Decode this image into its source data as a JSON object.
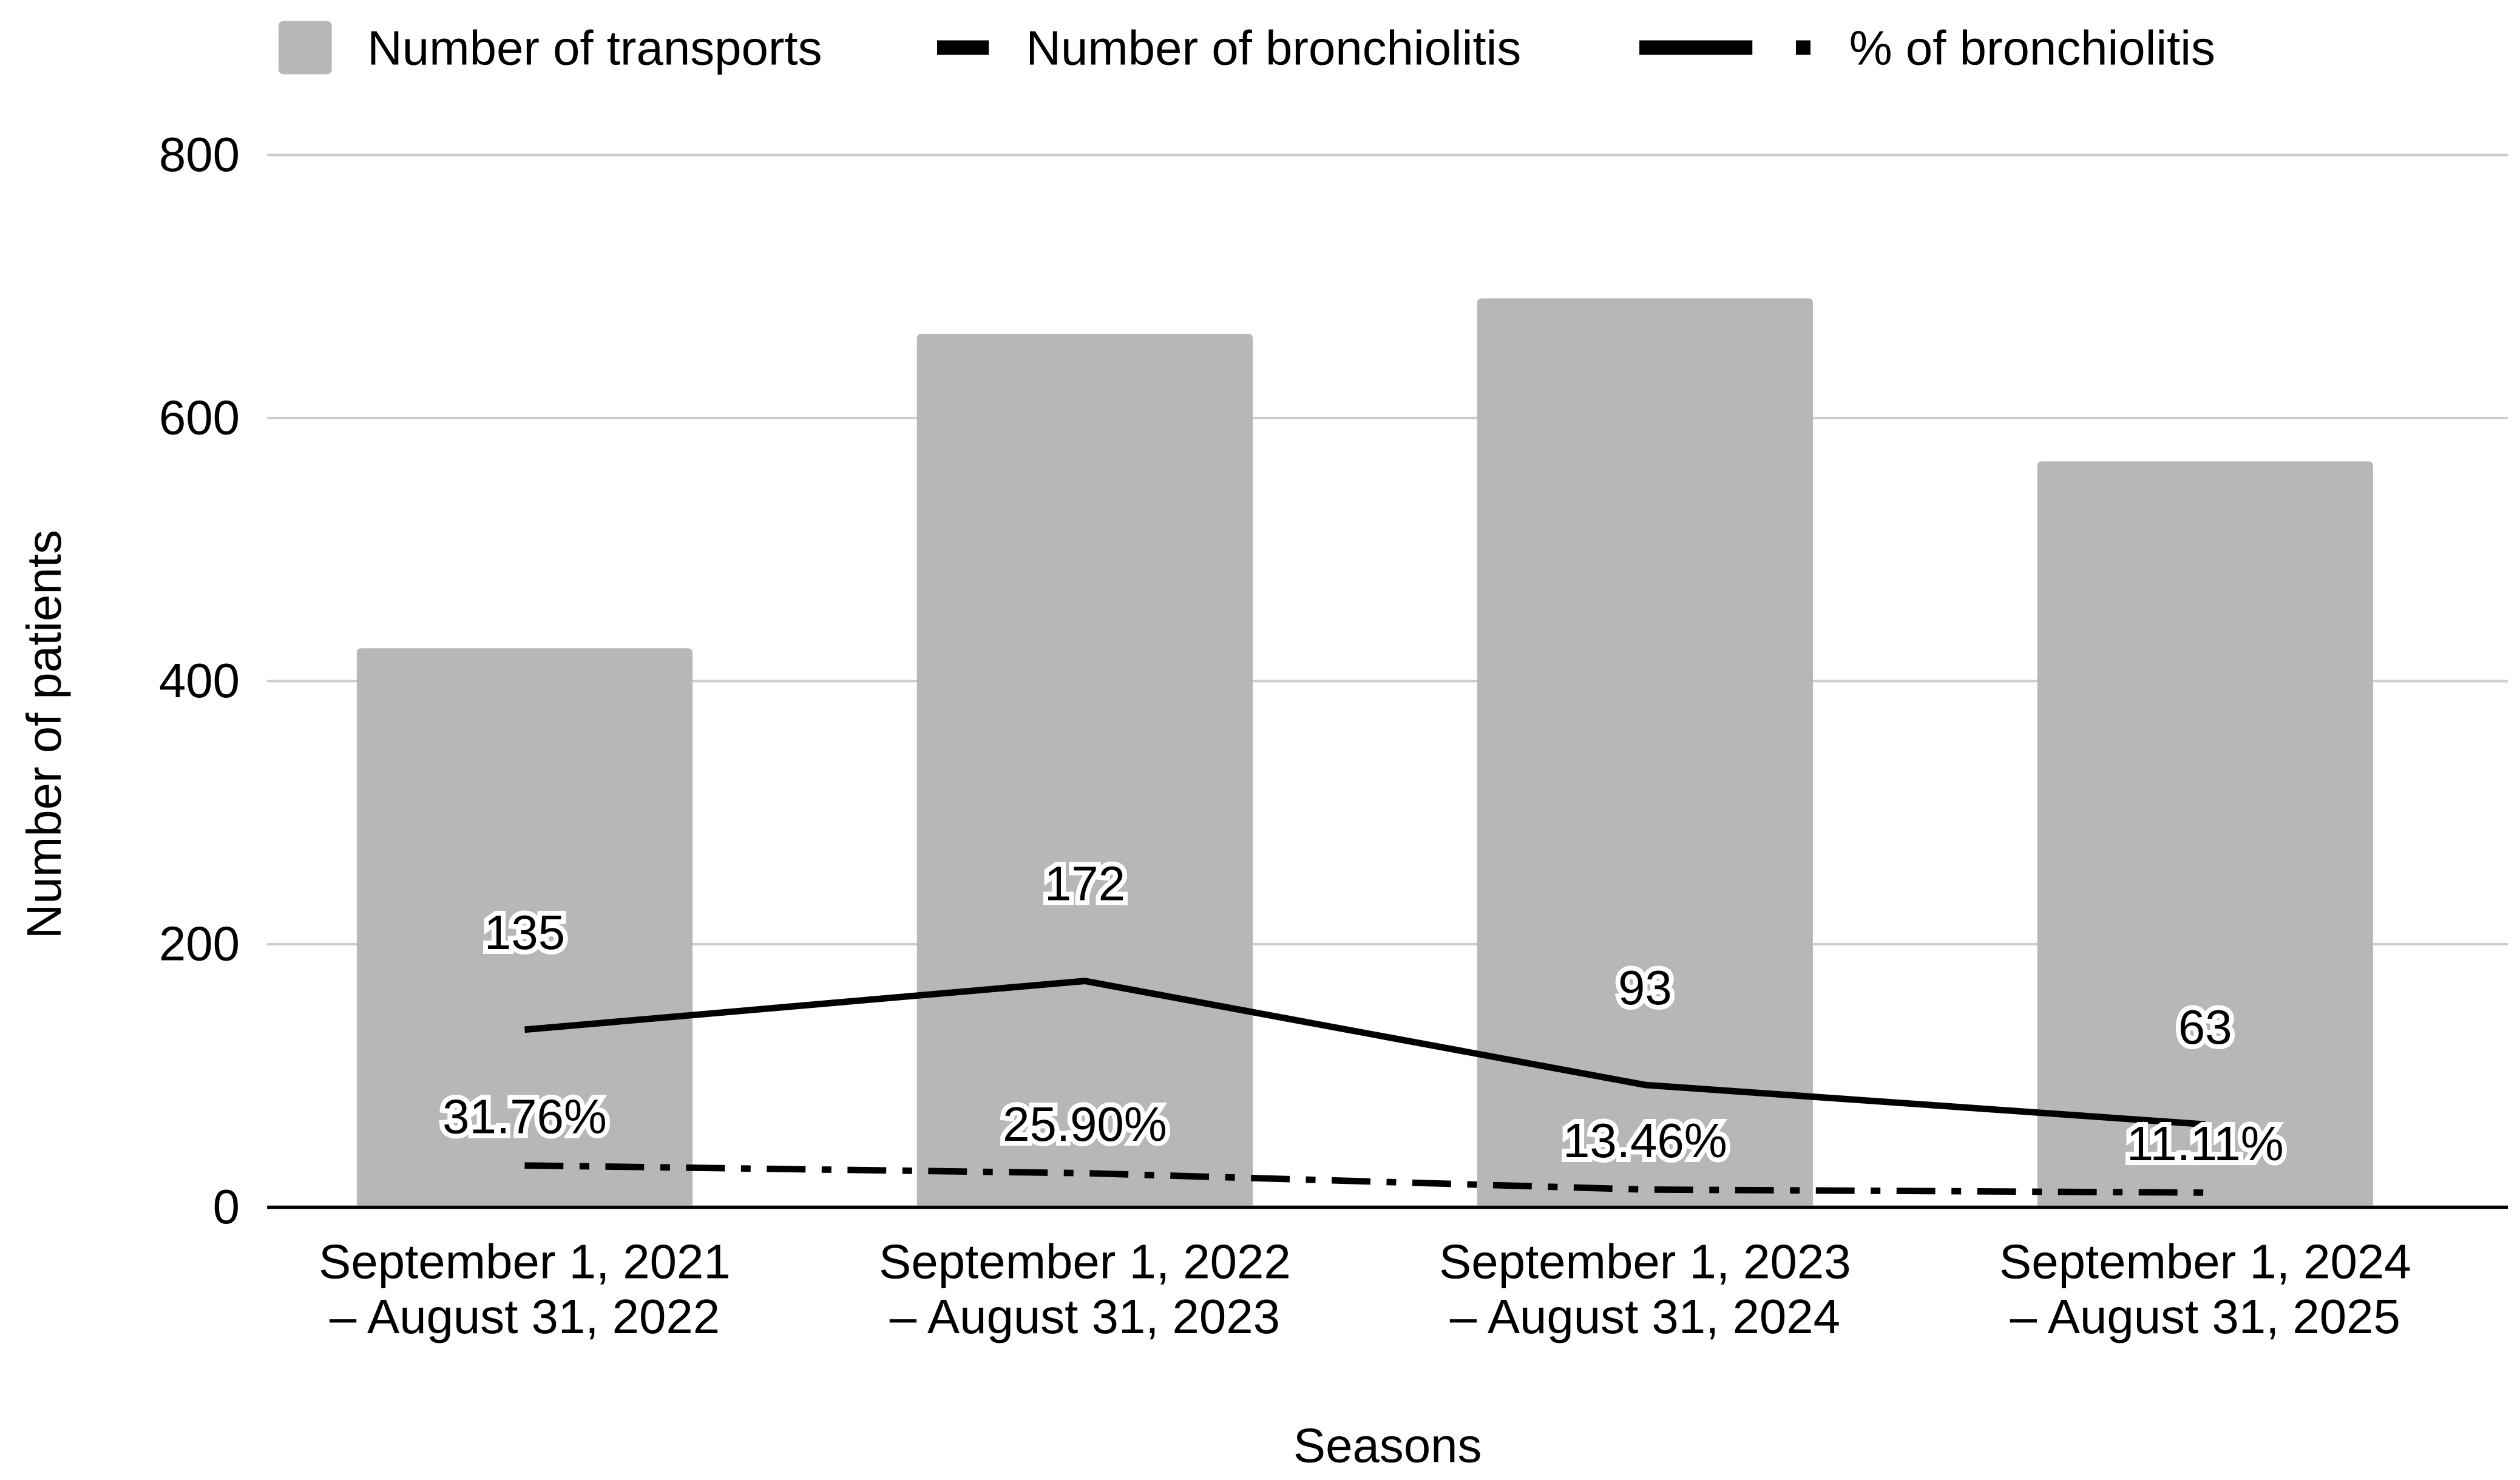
{
  "chart_data": {
    "type": "bar",
    "xlabel": "Seasons",
    "ylabel": "Number of patients",
    "ylim": [
      0,
      800
    ],
    "yticks": [
      0,
      200,
      400,
      600,
      800
    ],
    "grid": true,
    "legend_position": "top",
    "categories": [
      [
        "September 1, 2021",
        "– August 31, 2022"
      ],
      [
        "September 1, 2022",
        "– August 31, 2023"
      ],
      [
        "September 1, 2023",
        "– August 31, 2024"
      ],
      [
        "September 1, 2024",
        "– August 31, 2025"
      ]
    ],
    "series": [
      {
        "name": "Number of transports",
        "type": "bar",
        "color": "#b7b7b7",
        "values": [
          425,
          664,
          691,
          567
        ]
      },
      {
        "name": "Number of bronchiolitis",
        "type": "line",
        "style": "solid",
        "color": "#000000",
        "values": [
          135,
          172,
          93,
          63
        ],
        "labels": [
          "135",
          "172",
          "93",
          "63"
        ]
      },
      {
        "name": "% of bronchiolitis",
        "type": "line",
        "style": "dash-dot",
        "color": "#000000",
        "values": [
          31.76,
          25.9,
          13.46,
          11.11
        ],
        "labels": [
          "31.76%",
          "25.90%",
          "13.46%",
          "11.11%"
        ]
      }
    ]
  }
}
